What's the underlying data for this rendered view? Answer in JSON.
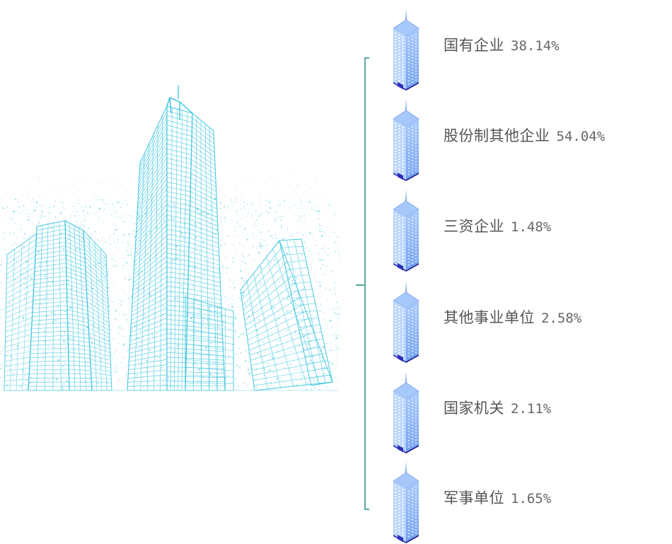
{
  "colors": {
    "wire": "#35c4dd",
    "wire_light": "#8fdcec",
    "bracket": "#5aa9a0",
    "tower_front": "#86b4f2",
    "tower_side": "#b8d4fb",
    "tower_base": "#2d2fb8",
    "text": "#555555"
  },
  "items": [
    {
      "name": "国有企业",
      "pct": "38.14%"
    },
    {
      "name": "股份制其他企业",
      "pct": "54.04%"
    },
    {
      "name": "三资企业",
      "pct": "1.48%"
    },
    {
      "name": "其他事业单位",
      "pct": "2.58%"
    },
    {
      "name": "国家机关",
      "pct": "2.11%"
    },
    {
      "name": "军事单位",
      "pct": "1.65%"
    }
  ]
}
